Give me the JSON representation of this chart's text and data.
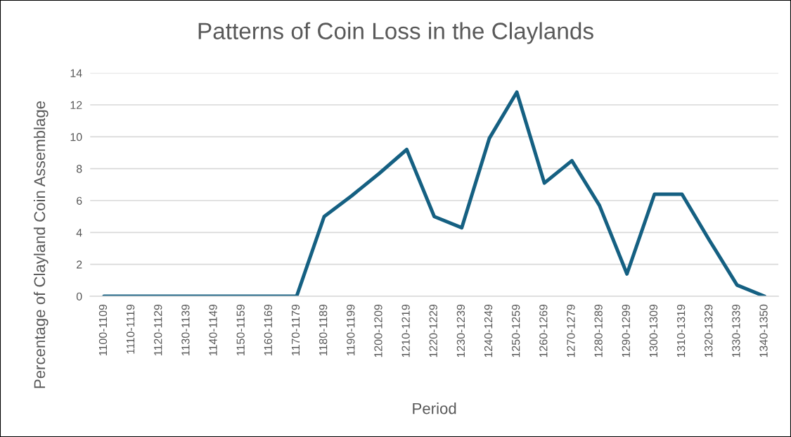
{
  "chart_data": {
    "type": "line",
    "title": "Patterns of Coin Loss in the Claylands",
    "xlabel": "Period",
    "ylabel": "Percentage of Clayland Coin Assemblage",
    "categories": [
      "1100-1109",
      "1110-1119",
      "1120-1129",
      "1130-1139",
      "1140-1149",
      "1150-1159",
      "1160-1169",
      "1170-1179",
      "1180-1189",
      "1190-1199",
      "1200-1209",
      "1210-1219",
      "1220-1229",
      "1230-1239",
      "1240-1249",
      "1250-1259",
      "1260-1269",
      "1270-1279",
      "1280-1289",
      "1290-1299",
      "1300-1309",
      "1310-1319",
      "1320-1329",
      "1330-1339",
      "1340-1350"
    ],
    "series": [
      {
        "color": "#156082",
        "values": [
          0,
          0,
          0,
          0,
          0,
          0,
          0,
          0,
          5.0,
          6.3,
          7.7,
          9.2,
          5.0,
          4.3,
          9.9,
          12.8,
          7.1,
          8.5,
          5.7,
          1.4,
          6.4,
          6.4,
          3.5,
          0.7,
          0
        ]
      }
    ],
    "ylim": [
      0,
      14
    ],
    "yticks": [
      0,
      2,
      4,
      6,
      8,
      10,
      12,
      14
    ],
    "grid": "y",
    "marker": "none",
    "line_style": "solid"
  }
}
